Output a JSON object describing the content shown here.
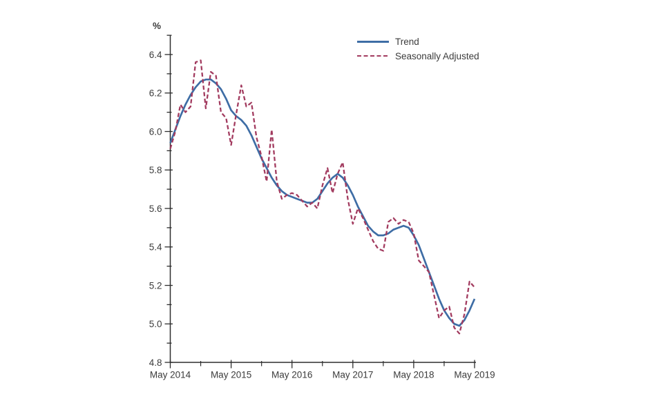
{
  "colors": {
    "background": "#ffffff",
    "axis": "#2d2d2d",
    "text": "#3b3b3b",
    "trend": "#3e6da5",
    "seasonally_adjusted": "#a23b5f"
  },
  "chart_data": {
    "type": "line",
    "title": "",
    "xlabel": "",
    "ylabel": "%",
    "grid": false,
    "legend_position": "top-right-inside",
    "y_axis": {
      "min": 4.8,
      "max": 6.5,
      "tick_step": 0.1,
      "label_step": 0.2,
      "tick_labels": [
        "4.8",
        "5.0",
        "5.2",
        "5.4",
        "5.6",
        "5.8",
        "6.0",
        "6.2",
        "6.4"
      ]
    },
    "x_axis": {
      "tick_labels": [
        "May 2014",
        "May 2015",
        "May 2016",
        "May 2017",
        "May 2018",
        "May 2019"
      ],
      "minor_ticks_between_labels": 1
    },
    "months": [
      "2014-05",
      "2014-06",
      "2014-07",
      "2014-08",
      "2014-09",
      "2014-10",
      "2014-11",
      "2014-12",
      "2015-01",
      "2015-02",
      "2015-03",
      "2015-04",
      "2015-05",
      "2015-06",
      "2015-07",
      "2015-08",
      "2015-09",
      "2015-10",
      "2015-11",
      "2015-12",
      "2016-01",
      "2016-02",
      "2016-03",
      "2016-04",
      "2016-05",
      "2016-06",
      "2016-07",
      "2016-08",
      "2016-09",
      "2016-10",
      "2016-11",
      "2016-12",
      "2017-01",
      "2017-02",
      "2017-03",
      "2017-04",
      "2017-05",
      "2017-06",
      "2017-07",
      "2017-08",
      "2017-09",
      "2017-10",
      "2017-11",
      "2017-12",
      "2018-01",
      "2018-02",
      "2018-03",
      "2018-04",
      "2018-05",
      "2018-06",
      "2018-07",
      "2018-08",
      "2018-09",
      "2018-10",
      "2018-11",
      "2018-12",
      "2019-01",
      "2019-02",
      "2019-03",
      "2019-04",
      "2019-05"
    ],
    "series": [
      {
        "name": "Trend",
        "style": "solid",
        "color": "#3e6da5",
        "values": [
          5.94,
          6.01,
          6.08,
          6.14,
          6.19,
          6.23,
          6.26,
          6.27,
          6.27,
          6.25,
          6.22,
          6.17,
          6.11,
          6.08,
          6.06,
          6.03,
          5.98,
          5.92,
          5.86,
          5.81,
          5.76,
          5.72,
          5.69,
          5.67,
          5.66,
          5.65,
          5.64,
          5.63,
          5.63,
          5.65,
          5.69,
          5.73,
          5.76,
          5.78,
          5.76,
          5.72,
          5.67,
          5.61,
          5.56,
          5.51,
          5.48,
          5.46,
          5.46,
          5.47,
          5.49,
          5.5,
          5.51,
          5.5,
          5.46,
          5.41,
          5.34,
          5.27,
          5.2,
          5.13,
          5.07,
          5.03,
          5.0,
          4.99,
          5.02,
          5.07,
          5.13
        ]
      },
      {
        "name": "Seasonally Adjusted",
        "style": "dashed",
        "color": "#a23b5f",
        "values": [
          5.91,
          6.0,
          6.14,
          6.1,
          6.13,
          6.36,
          6.37,
          6.12,
          6.31,
          6.29,
          6.1,
          6.07,
          5.93,
          6.09,
          6.24,
          6.13,
          6.15,
          5.97,
          5.87,
          5.74,
          6.01,
          5.74,
          5.65,
          5.67,
          5.68,
          5.67,
          5.64,
          5.61,
          5.63,
          5.6,
          5.72,
          5.81,
          5.68,
          5.78,
          5.84,
          5.65,
          5.52,
          5.6,
          5.55,
          5.49,
          5.43,
          5.39,
          5.38,
          5.53,
          5.55,
          5.52,
          5.54,
          5.53,
          5.47,
          5.33,
          5.3,
          5.27,
          5.15,
          5.03,
          5.07,
          5.09,
          4.98,
          4.95,
          5.05,
          5.22,
          5.19
        ]
      }
    ]
  }
}
